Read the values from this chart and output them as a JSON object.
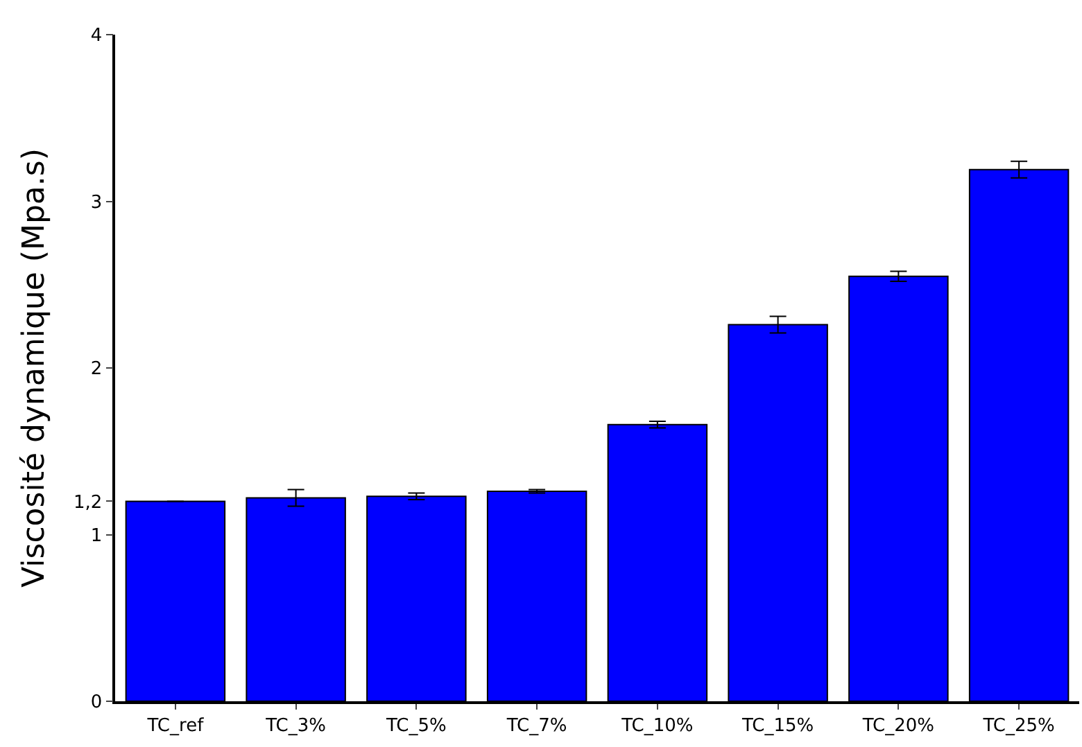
{
  "chart_data": {
    "type": "bar",
    "ylabel": "Viscosité dynamique (Mpa.s)",
    "categories": [
      "TC_ref",
      "TC_3%",
      "TC_5%",
      "TC_7%",
      "TC_10%",
      "TC_15%",
      "TC_20%",
      "TC_25%"
    ],
    "values": [
      1.2,
      1.22,
      1.23,
      1.26,
      1.66,
      2.26,
      2.55,
      3.19
    ],
    "errors": [
      null,
      0.05,
      0.02,
      0.01,
      0.02,
      0.05,
      0.03,
      0.05
    ],
    "color": "#0000ff",
    "ylim": [
      0,
      4
    ],
    "yticks": [
      0,
      1,
      {
        "value": 1.2,
        "label": "1,2"
      },
      2,
      3,
      4
    ],
    "grid": false
  }
}
